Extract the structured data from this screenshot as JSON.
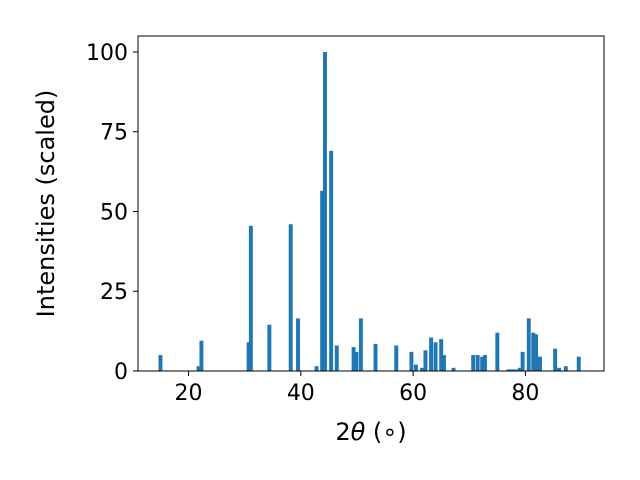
{
  "chart_data": {
    "type": "bar",
    "title": "",
    "xlabel_prefix": "2",
    "xlabel_symbol": "θ",
    "xlabel_suffix": " (∘)",
    "ylabel": "Intensities (scaled)",
    "xlim": [
      11.0,
      94.0
    ],
    "ylim": [
      0,
      105
    ],
    "xticks": [
      20,
      40,
      60,
      80
    ],
    "yticks": [
      0,
      25,
      50,
      75,
      100
    ],
    "bar_width": 0.7,
    "bar_color": "#1f77b4",
    "grid": false,
    "x": [
      15.0,
      21.8,
      22.3,
      30.7,
      31.1,
      34.4,
      38.2,
      39.5,
      42.8,
      43.8,
      44.3,
      45.4,
      46.4,
      49.4,
      49.9,
      50.7,
      53.3,
      57.0,
      59.7,
      60.5,
      61.6,
      62.2,
      63.2,
      64.0,
      65.0,
      65.5,
      67.2,
      70.7,
      71.5,
      72.3,
      72.8,
      75.0,
      77.0,
      77.6,
      78.3,
      79.0,
      79.5,
      80.6,
      81.4,
      81.9,
      82.6,
      85.3,
      86.0,
      87.2,
      89.5
    ],
    "values": [
      5.0,
      1.5,
      9.5,
      9.0,
      45.5,
      14.5,
      46.0,
      16.5,
      1.5,
      56.5,
      100.0,
      69.0,
      8.0,
      7.5,
      6.0,
      16.5,
      8.5,
      8.0,
      6.0,
      2.0,
      1.0,
      6.5,
      10.5,
      9.0,
      10.0,
      5.0,
      1.0,
      5.0,
      5.0,
      4.5,
      5.0,
      12.0,
      0.5,
      0.5,
      0.5,
      1.0,
      6.0,
      16.5,
      12.0,
      11.5,
      4.5,
      7.0,
      1.0,
      1.5,
      4.5
    ]
  }
}
